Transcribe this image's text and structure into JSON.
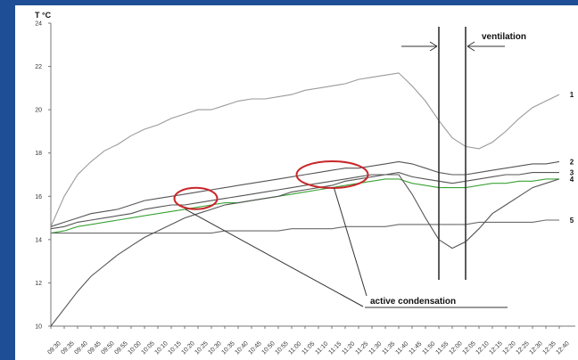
{
  "colors": {
    "background": "#1e4f96",
    "panel": "#ffffff",
    "series_1": "#9a9a9a",
    "series_2": "#555555",
    "series_3": "#555555",
    "series_4": "#3aa335",
    "series_5": "#6a6a6a",
    "highlight": "#c8262a",
    "annotation_line": "#333333"
  },
  "chart_data": {
    "type": "line",
    "ylabel": "T °C",
    "ylim": [
      10,
      24
    ],
    "yticks": [
      10,
      12,
      14,
      16,
      18,
      20,
      22,
      24
    ],
    "grid": false,
    "x": [
      "09:30",
      "09:35",
      "09:40",
      "09:45",
      "09:50",
      "09:55",
      "10:00",
      "10:05",
      "10:10",
      "10:15",
      "10:20",
      "10:25",
      "10:30",
      "10:35",
      "10:40",
      "10:45",
      "10:50",
      "10:55",
      "11:00",
      "11:05",
      "11:10",
      "11:15",
      "11:20",
      "11:25",
      "11:30",
      "11:35",
      "11:40",
      "11:45",
      "11:50",
      "11:55",
      "12:00",
      "12:05",
      "12:10",
      "12:15",
      "12:20",
      "12:25",
      "12:30",
      "12:35",
      "12:40"
    ],
    "xtick_labels": [
      "09:30",
      "09:35",
      "09:40",
      "09:45",
      "09:50",
      "09:55",
      "10:00",
      "10:05",
      "10:10",
      "10:15",
      "10:20",
      "10:25",
      "10:30",
      "10:35",
      "10:40",
      "10:45",
      "10:50",
      "10:55",
      "11:00",
      "11:05",
      "11:10",
      "11:15",
      "11:20",
      "11:25",
      "11:30",
      "11:35",
      "11:40",
      "11:45",
      "11:50",
      "11:55",
      "12:00",
      "12:05",
      "12:10",
      "12:15",
      "12:20",
      "12:25",
      "12:30",
      "12:35",
      "12:40"
    ],
    "series": [
      {
        "name": "1",
        "color": "#9a9a9a",
        "values": [
          14.6,
          16.0,
          17.0,
          17.6,
          18.1,
          18.4,
          18.8,
          19.1,
          19.3,
          19.6,
          19.8,
          20.0,
          20.0,
          20.2,
          20.4,
          20.5,
          20.5,
          20.6,
          20.7,
          20.9,
          21.0,
          21.1,
          21.2,
          21.4,
          21.5,
          21.6,
          21.7,
          21.1,
          20.4,
          19.5,
          18.7,
          18.3,
          18.2,
          18.5,
          19.0,
          19.6,
          20.1,
          20.4,
          20.7
        ]
      },
      {
        "name": "2",
        "color": "#555555",
        "values": [
          14.6,
          14.8,
          15.0,
          15.2,
          15.3,
          15.4,
          15.6,
          15.8,
          15.9,
          16.0,
          16.1,
          16.2,
          16.3,
          16.4,
          16.5,
          16.6,
          16.7,
          16.8,
          16.9,
          17.0,
          17.1,
          17.2,
          17.3,
          17.3,
          17.4,
          17.5,
          17.6,
          17.5,
          17.3,
          17.1,
          17.0,
          17.0,
          17.1,
          17.2,
          17.3,
          17.4,
          17.5,
          17.5,
          17.6
        ]
      },
      {
        "name": "3",
        "color": "#555555",
        "values": [
          14.5,
          14.6,
          14.8,
          14.9,
          15.0,
          15.1,
          15.2,
          15.4,
          15.5,
          15.6,
          15.6,
          15.7,
          15.8,
          15.9,
          16.0,
          16.1,
          16.2,
          16.3,
          16.4,
          16.5,
          16.6,
          16.7,
          16.8,
          16.9,
          17.0,
          17.0,
          17.1,
          16.9,
          16.8,
          16.7,
          16.6,
          16.7,
          16.8,
          16.9,
          17.0,
          17.0,
          17.1,
          17.1,
          17.1
        ]
      },
      {
        "name": "4",
        "color": "#3aa335",
        "values": [
          14.3,
          14.4,
          14.6,
          14.7,
          14.8,
          14.9,
          15.0,
          15.1,
          15.2,
          15.3,
          15.4,
          15.5,
          15.6,
          15.7,
          15.7,
          15.8,
          15.9,
          16.0,
          16.1,
          16.2,
          16.3,
          16.4,
          16.5,
          16.6,
          16.7,
          16.8,
          16.8,
          16.6,
          16.5,
          16.4,
          16.4,
          16.4,
          16.5,
          16.6,
          16.6,
          16.7,
          16.7,
          16.8,
          16.8
        ]
      },
      {
        "name": "5",
        "color": "#6a6a6a",
        "values": [
          14.3,
          14.3,
          14.3,
          14.3,
          14.3,
          14.3,
          14.3,
          14.3,
          14.3,
          14.3,
          14.3,
          14.3,
          14.3,
          14.4,
          14.4,
          14.4,
          14.4,
          14.4,
          14.5,
          14.5,
          14.5,
          14.5,
          14.6,
          14.6,
          14.6,
          14.6,
          14.7,
          14.7,
          14.7,
          14.7,
          14.7,
          14.7,
          14.8,
          14.8,
          14.8,
          14.8,
          14.8,
          14.9,
          14.9
        ]
      },
      {
        "name": "",
        "color": "#555555",
        "values": [
          10.0,
          10.8,
          11.6,
          12.3,
          12.8,
          13.3,
          13.7,
          14.1,
          14.4,
          14.7,
          15.0,
          15.2,
          15.4,
          15.6,
          15.7,
          15.8,
          15.9,
          16.0,
          16.2,
          16.3,
          16.4,
          16.5,
          16.7,
          16.8,
          16.9,
          17.0,
          17.0,
          16.1,
          15.0,
          14.0,
          13.6,
          13.9,
          14.5,
          15.2,
          15.6,
          16.0,
          16.4,
          16.6,
          16.8
        ]
      }
    ],
    "annotations": [
      {
        "text": "ventilation",
        "from": "11:55",
        "to": "12:05"
      },
      {
        "text": "active condensation"
      }
    ]
  }
}
